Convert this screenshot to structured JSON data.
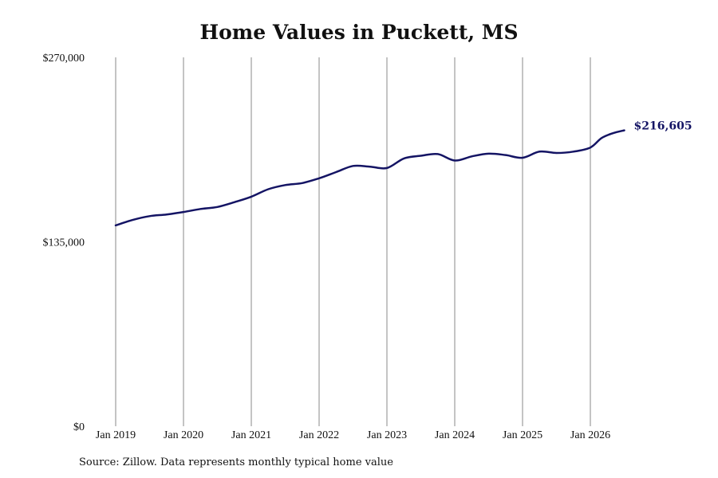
{
  "chart_data": {
    "type": "line",
    "title": "Home Values in Puckett, MS",
    "xlabel": "",
    "ylabel": "",
    "ylim": [
      0,
      270000
    ],
    "xlim": [
      "2019-01",
      "2026-08"
    ],
    "y_ticks": [
      {
        "value": 0,
        "label": "$0"
      },
      {
        "value": 135000,
        "label": "$135,000"
      },
      {
        "value": 270000,
        "label": "$270,000"
      }
    ],
    "x_ticks": [
      {
        "date": "2019-01",
        "label": "Jan 2019"
      },
      {
        "date": "2020-01",
        "label": "Jan 2020"
      },
      {
        "date": "2021-01",
        "label": "Jan 2021"
      },
      {
        "date": "2022-01",
        "label": "Jan 2022"
      },
      {
        "date": "2023-01",
        "label": "Jan 2023"
      },
      {
        "date": "2024-01",
        "label": "Jan 2024"
      },
      {
        "date": "2025-01",
        "label": "Jan 2025"
      },
      {
        "date": "2026-01",
        "label": "Jan 2026"
      }
    ],
    "grid": "vertical",
    "line_color": "#141464",
    "last_value_label": "$216,605",
    "series": [
      {
        "x": [
          "2019-01",
          "2019-04",
          "2019-07",
          "2019-10",
          "2020-01",
          "2020-04",
          "2020-07",
          "2020-10",
          "2021-01",
          "2021-04",
          "2021-07",
          "2021-10",
          "2022-01",
          "2022-04",
          "2022-07",
          "2022-10",
          "2023-01",
          "2023-04",
          "2023-07",
          "2023-10",
          "2024-01",
          "2024-04",
          "2024-07",
          "2024-10",
          "2025-01",
          "2025-04",
          "2025-07",
          "2025-10",
          "2026-01",
          "2026-03",
          "2026-05",
          "2026-07"
        ],
        "y": [
          147000,
          151000,
          153800,
          155000,
          156800,
          159000,
          160500,
          164000,
          168000,
          173500,
          176500,
          178000,
          181500,
          186000,
          190500,
          190000,
          189000,
          196000,
          198000,
          199200,
          194500,
          197500,
          199500,
          198500,
          196500,
          201000,
          200000,
          201000,
          204000,
          211000,
          214500,
          216605
        ]
      }
    ]
  },
  "source_note": "Source: Zillow. Data represents monthly typical home value"
}
